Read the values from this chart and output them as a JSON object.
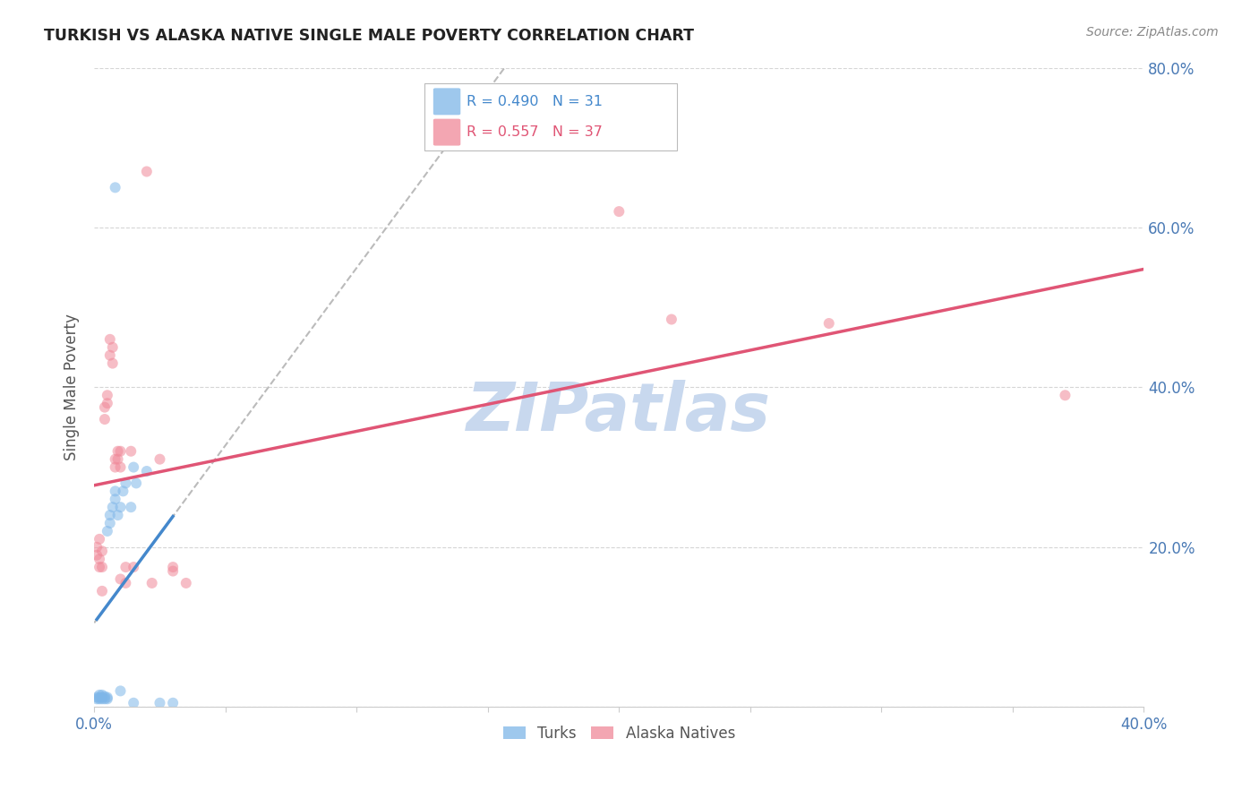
{
  "title": "TURKISH VS ALASKA NATIVE SINGLE MALE POVERTY CORRELATION CHART",
  "source": "Source: ZipAtlas.com",
  "ylabel": "Single Male Poverty",
  "xlim": [
    0.0,
    0.4
  ],
  "ylim": [
    0.0,
    0.8
  ],
  "xtick_positions": [
    0.0,
    0.05,
    0.1,
    0.15,
    0.2,
    0.25,
    0.3,
    0.35,
    0.4
  ],
  "xtick_labels": [
    "0.0%",
    "",
    "",
    "",
    "",
    "",
    "",
    "",
    "40.0%"
  ],
  "ytick_values": [
    0.0,
    0.2,
    0.4,
    0.6,
    0.8
  ],
  "ytick_labels": [
    "",
    "20.0%",
    "40.0%",
    "60.0%",
    "80.0%"
  ],
  "watermark": "ZIPatlas",
  "legend_entry1": {
    "color": "#7eb6e8",
    "R": 0.49,
    "N": 31,
    "label": "Turks"
  },
  "legend_entry2": {
    "color": "#f08898",
    "R": 0.557,
    "N": 37,
    "label": "Alaska Natives"
  },
  "turks_scatter": [
    [
      0.001,
      0.01
    ],
    [
      0.001,
      0.012
    ],
    [
      0.002,
      0.01
    ],
    [
      0.002,
      0.012
    ],
    [
      0.002,
      0.015
    ],
    [
      0.003,
      0.01
    ],
    [
      0.003,
      0.012
    ],
    [
      0.003,
      0.015
    ],
    [
      0.004,
      0.01
    ],
    [
      0.004,
      0.013
    ],
    [
      0.005,
      0.01
    ],
    [
      0.005,
      0.012
    ],
    [
      0.005,
      0.22
    ],
    [
      0.006,
      0.23
    ],
    [
      0.006,
      0.24
    ],
    [
      0.007,
      0.25
    ],
    [
      0.008,
      0.26
    ],
    [
      0.008,
      0.27
    ],
    [
      0.009,
      0.24
    ],
    [
      0.01,
      0.25
    ],
    [
      0.01,
      0.02
    ],
    [
      0.011,
      0.27
    ],
    [
      0.012,
      0.28
    ],
    [
      0.014,
      0.25
    ],
    [
      0.015,
      0.3
    ],
    [
      0.016,
      0.28
    ],
    [
      0.02,
      0.295
    ],
    [
      0.025,
      0.005
    ],
    [
      0.03,
      0.005
    ],
    [
      0.008,
      0.65
    ],
    [
      0.015,
      0.005
    ]
  ],
  "alaska_scatter": [
    [
      0.001,
      0.2
    ],
    [
      0.001,
      0.19
    ],
    [
      0.002,
      0.21
    ],
    [
      0.002,
      0.185
    ],
    [
      0.002,
      0.175
    ],
    [
      0.003,
      0.195
    ],
    [
      0.003,
      0.175
    ],
    [
      0.003,
      0.145
    ],
    [
      0.004,
      0.375
    ],
    [
      0.004,
      0.36
    ],
    [
      0.005,
      0.39
    ],
    [
      0.005,
      0.38
    ],
    [
      0.006,
      0.44
    ],
    [
      0.006,
      0.46
    ],
    [
      0.007,
      0.43
    ],
    [
      0.007,
      0.45
    ],
    [
      0.008,
      0.3
    ],
    [
      0.008,
      0.31
    ],
    [
      0.009,
      0.32
    ],
    [
      0.009,
      0.31
    ],
    [
      0.01,
      0.32
    ],
    [
      0.01,
      0.3
    ],
    [
      0.01,
      0.16
    ],
    [
      0.012,
      0.155
    ],
    [
      0.012,
      0.175
    ],
    [
      0.014,
      0.32
    ],
    [
      0.015,
      0.175
    ],
    [
      0.02,
      0.67
    ],
    [
      0.022,
      0.155
    ],
    [
      0.025,
      0.31
    ],
    [
      0.03,
      0.17
    ],
    [
      0.03,
      0.175
    ],
    [
      0.035,
      0.155
    ],
    [
      0.2,
      0.62
    ],
    [
      0.22,
      0.485
    ],
    [
      0.28,
      0.48
    ],
    [
      0.37,
      0.39
    ]
  ],
  "turks_line_color": "#4488cc",
  "alaska_line_color": "#e05575",
  "dash_line_color": "#bbbbbb",
  "scatter_alpha": 0.55,
  "scatter_size": 75,
  "background_color": "#ffffff",
  "grid_color": "#cccccc",
  "title_color": "#222222",
  "axis_label_color": "#555555",
  "tick_color": "#4a7ab5",
  "watermark_color": "#c8d8ee"
}
